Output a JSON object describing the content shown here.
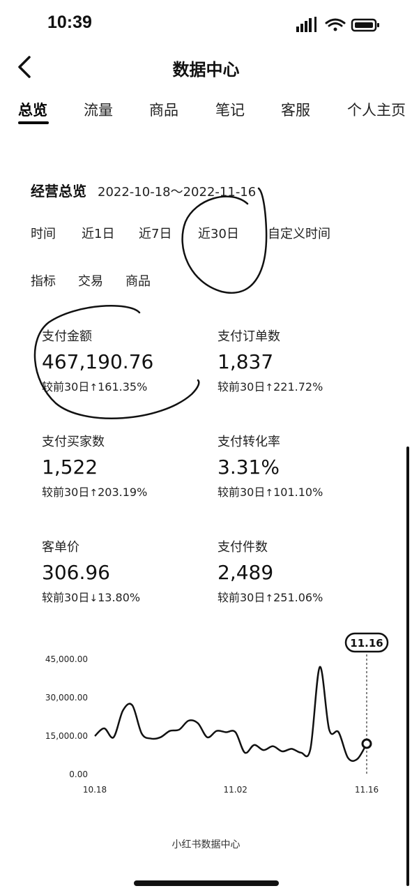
{
  "status_bar": {
    "time": "10:39"
  },
  "header": {
    "title": "数据中心"
  },
  "tabs": [
    {
      "label": "总览"
    },
    {
      "label": "流量"
    },
    {
      "label": "商品"
    },
    {
      "label": "笔记"
    },
    {
      "label": "客服"
    },
    {
      "label": "个人主页"
    }
  ],
  "overview": {
    "title": "经营总览",
    "date_range": "2022-10-18～2022-11-16",
    "time_filter_label": "时间",
    "time_options": [
      {
        "label": "近1日"
      },
      {
        "label": "近7日"
      },
      {
        "label": "近30日"
      },
      {
        "label": "自定义时间"
      }
    ],
    "metric_filter_label": "指标",
    "metric_options": [
      {
        "label": "交易"
      },
      {
        "label": "商品"
      }
    ]
  },
  "metrics": [
    {
      "label": "支付金额",
      "value": "467,190.76",
      "change_prefix": "较前30日",
      "direction": "up",
      "change": "161.35%"
    },
    {
      "label": "支付订单数",
      "value": "1,837",
      "change_prefix": "较前30日",
      "direction": "up",
      "change": "221.72%"
    },
    {
      "label": "支付买家数",
      "value": "1,522",
      "change_prefix": "较前30日",
      "direction": "up",
      "change": "203.19%"
    },
    {
      "label": "支付转化率",
      "value": "3.31%",
      "change_prefix": "较前30日",
      "direction": "up",
      "change": "101.10%"
    },
    {
      "label": "客单价",
      "value": "306.96",
      "change_prefix": "较前30日",
      "direction": "down",
      "change": "13.80%"
    },
    {
      "label": "支付件数",
      "value": "2,489",
      "change_prefix": "较前30日",
      "direction": "up",
      "change": "251.06%"
    }
  ],
  "arrows": {
    "up": "↑",
    "down": "↓"
  },
  "chart_data": {
    "type": "line",
    "x_tick_labels": [
      "10.18",
      "11.02",
      "11.16"
    ],
    "y_tick_labels": [
      "45,000.00",
      "30,000.00",
      "15,000.00",
      "0.00"
    ],
    "ylim": [
      0,
      45000
    ],
    "highlight_label": "11.16",
    "series": [
      {
        "values": [
          15000,
          18000,
          14500,
          25000,
          27000,
          16000,
          14000,
          14500,
          17000,
          17500,
          21000,
          20000,
          14500,
          17000,
          16500,
          16500,
          8500,
          11500,
          9500,
          11000,
          9000,
          10000,
          8500,
          10000,
          42000,
          17500,
          16500,
          6500,
          6000,
          12000
        ]
      }
    ]
  },
  "footer": {
    "text": "小红书数据中心"
  }
}
